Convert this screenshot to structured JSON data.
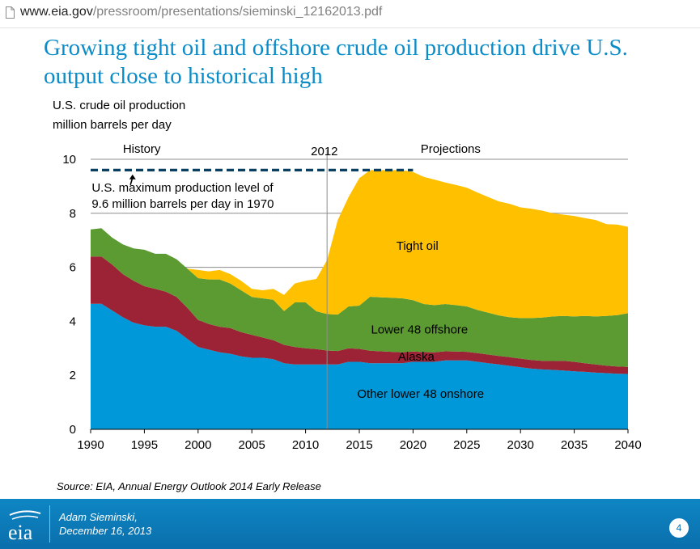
{
  "browser": {
    "url_host": "www.eia.gov",
    "url_path": "/pressroom/presentations/sieminski_12162013.pdf"
  },
  "slide": {
    "title_line1": "Growing tight oil and offshore crude oil production drive U.S.",
    "title_line2": "output close to historical high",
    "y_title_line1": "U.S. crude oil production",
    "y_title_line2": "million barrels per day",
    "source": "Source:  EIA, Annual Energy Outlook 2014 Early Release",
    "author_name": "Adam Sieminski,",
    "author_date": "December 16, 2013",
    "page_number": "4",
    "logo_text": "eia"
  },
  "chart_data": {
    "type": "area",
    "stacked": true,
    "x": [
      1990,
      1991,
      1992,
      1993,
      1994,
      1995,
      1996,
      1997,
      1998,
      1999,
      2000,
      2001,
      2002,
      2003,
      2004,
      2005,
      2006,
      2007,
      2008,
      2009,
      2010,
      2011,
      2012,
      2013,
      2014,
      2015,
      2016,
      2017,
      2018,
      2019,
      2020,
      2021,
      2022,
      2023,
      2024,
      2025,
      2026,
      2027,
      2028,
      2029,
      2030,
      2031,
      2032,
      2033,
      2034,
      2035,
      2036,
      2037,
      2038,
      2039,
      2040
    ],
    "series": [
      {
        "name": "Other lower 48 onshore",
        "color": "#0098d8",
        "values": [
          4.65,
          4.65,
          4.4,
          4.15,
          3.95,
          3.85,
          3.8,
          3.8,
          3.65,
          3.35,
          3.05,
          2.95,
          2.85,
          2.8,
          2.7,
          2.65,
          2.65,
          2.6,
          2.45,
          2.4,
          2.4,
          2.4,
          2.4,
          2.4,
          2.5,
          2.5,
          2.45,
          2.45,
          2.45,
          2.45,
          2.5,
          2.5,
          2.5,
          2.55,
          2.55,
          2.55,
          2.5,
          2.45,
          2.4,
          2.35,
          2.3,
          2.25,
          2.22,
          2.2,
          2.18,
          2.15,
          2.13,
          2.1,
          2.08,
          2.06,
          2.05
        ]
      },
      {
        "name": "Alaska",
        "color": "#9b2335",
        "values": [
          1.75,
          1.75,
          1.7,
          1.6,
          1.55,
          1.45,
          1.4,
          1.3,
          1.25,
          1.15,
          1.0,
          0.95,
          0.95,
          0.95,
          0.9,
          0.85,
          0.75,
          0.7,
          0.68,
          0.65,
          0.6,
          0.57,
          0.52,
          0.5,
          0.5,
          0.48,
          0.46,
          0.44,
          0.42,
          0.4,
          0.38,
          0.36,
          0.35,
          0.34,
          0.33,
          0.32,
          0.32,
          0.32,
          0.32,
          0.32,
          0.32,
          0.32,
          0.32,
          0.33,
          0.36,
          0.35,
          0.32,
          0.3,
          0.28,
          0.27,
          0.26
        ]
      },
      {
        "name": "Lower 48 offshore",
        "color": "#5b9b32",
        "values": [
          1.0,
          1.05,
          1.0,
          1.1,
          1.2,
          1.35,
          1.3,
          1.4,
          1.4,
          1.45,
          1.55,
          1.65,
          1.75,
          1.65,
          1.55,
          1.4,
          1.45,
          1.5,
          1.25,
          1.65,
          1.7,
          1.4,
          1.35,
          1.35,
          1.55,
          1.6,
          2.0,
          2.0,
          2.0,
          2.0,
          1.9,
          1.78,
          1.75,
          1.75,
          1.72,
          1.68,
          1.6,
          1.55,
          1.5,
          1.48,
          1.5,
          1.55,
          1.6,
          1.65,
          1.66,
          1.68,
          1.75,
          1.78,
          1.84,
          1.9,
          1.99
        ]
      },
      {
        "name": "Tight oil",
        "color": "#ffc000",
        "values": [
          0,
          0,
          0,
          0,
          0,
          0,
          0,
          0,
          0,
          0,
          0.3,
          0.3,
          0.35,
          0.35,
          0.35,
          0.3,
          0.3,
          0.4,
          0.6,
          0.7,
          0.8,
          1.2,
          2.0,
          3.5,
          4.05,
          4.72,
          4.69,
          4.71,
          4.73,
          4.75,
          4.75,
          4.71,
          4.65,
          4.5,
          4.45,
          4.4,
          4.35,
          4.28,
          4.22,
          4.2,
          4.1,
          4.05,
          3.96,
          3.82,
          3.75,
          3.72,
          3.62,
          3.57,
          3.4,
          3.35,
          3.2
        ]
      }
    ],
    "series_label_color": {
      "Other lower 48 onshore": "#ffffff",
      "Alaska": "#ffffff",
      "Lower 48 offshore": "#ffffff",
      "Tight oil": "#000000"
    },
    "yticks": [
      0,
      2,
      4,
      6,
      8,
      10
    ],
    "xticks": [
      1990,
      1995,
      2000,
      2005,
      2010,
      2015,
      2020,
      2025,
      2030,
      2035,
      2040
    ],
    "ylim": [
      0,
      10
    ],
    "xlim": [
      1990,
      2040
    ],
    "grid": "horizontal",
    "divider_year": 2012,
    "divider_label": "2012",
    "history_label": "History",
    "projections_label": "Projections",
    "max_level": {
      "value": 9.6,
      "x_from": 1990,
      "x_to": 2020,
      "note_line1": "U.S. maximum production level of",
      "note_line2": "9.6 million barrels per day in 1970"
    }
  }
}
